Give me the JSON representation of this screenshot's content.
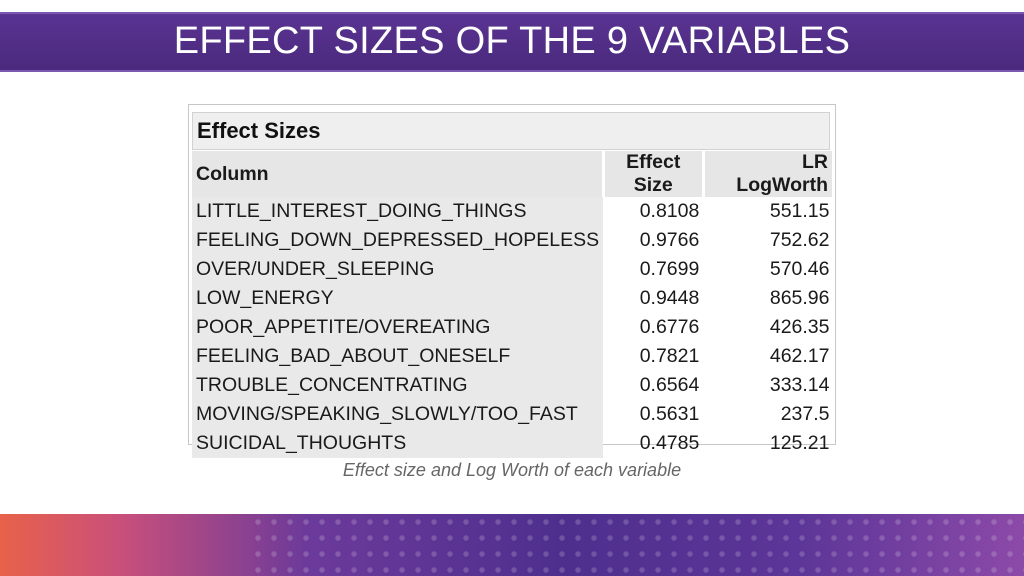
{
  "header": {
    "title": "EFFECT SIZES OF THE 9 VARIABLES"
  },
  "report": {
    "title": "Effect Sizes",
    "columns": [
      "Column",
      "Effect Size",
      "LR LogWorth"
    ],
    "rows": [
      {
        "column": "LITTLE_INTEREST_DOING_THINGS",
        "effect_size": "0.8108",
        "lr_logworth": "551.15"
      },
      {
        "column": "FEELING_DOWN_DEPRESSED_HOPELESS",
        "effect_size": "0.9766",
        "lr_logworth": "752.62"
      },
      {
        "column": "OVER/UNDER_SLEEPING",
        "effect_size": "0.7699",
        "lr_logworth": "570.46"
      },
      {
        "column": "LOW_ENERGY",
        "effect_size": "0.9448",
        "lr_logworth": "865.96"
      },
      {
        "column": "POOR_APPETITE/OVEREATING",
        "effect_size": "0.6776",
        "lr_logworth": "426.35"
      },
      {
        "column": "FEELING_BAD_ABOUT_ONESELF",
        "effect_size": "0.7821",
        "lr_logworth": "462.17"
      },
      {
        "column": "TROUBLE_CONCENTRATING",
        "effect_size": "0.6564",
        "lr_logworth": "333.14"
      },
      {
        "column": "MOVING/SPEAKING_SLOWLY/TOO_FAST",
        "effect_size": "0.5631",
        "lr_logworth": "237.5"
      },
      {
        "column": "SUICIDAL_THOUGHTS",
        "effect_size": "0.4785",
        "lr_logworth": "125.21"
      }
    ]
  },
  "caption": "Effect size and Log Worth of each variable",
  "colors": {
    "title_bar": "#4f2d86",
    "title_text": "#ffffff",
    "footer_start": "#e8624a",
    "footer_mid": "#4e2f8e"
  }
}
